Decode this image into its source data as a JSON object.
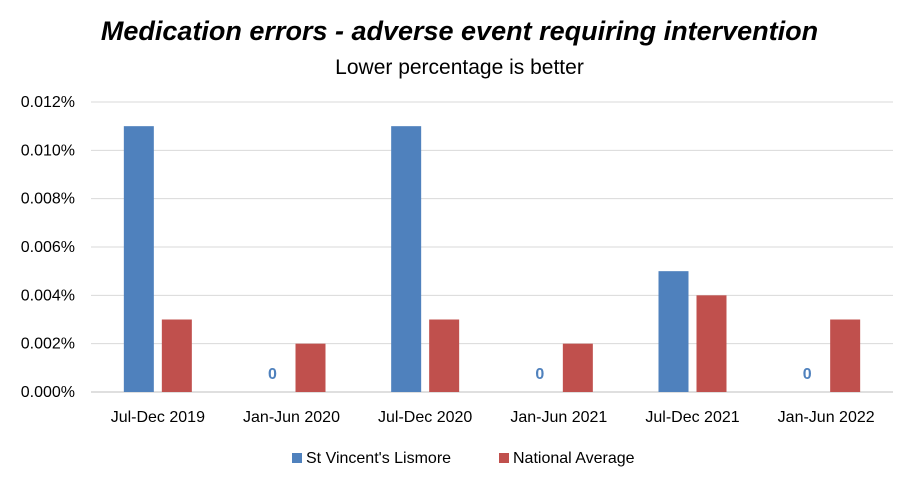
{
  "chart_data": {
    "type": "bar",
    "title": "Medication errors - adverse event requiring intervention",
    "subtitle": "Lower percentage is better",
    "categories": [
      "Jul-Dec 2019",
      "Jan-Jun 2020",
      "Jul-Dec 2020",
      "Jan-Jun 2021",
      "Jul-Dec 2021",
      "Jan-Jun 2022"
    ],
    "series": [
      {
        "name": "St Vincent's Lismore",
        "color": "#4f81bd",
        "values": [
          0.011,
          0,
          0.011,
          0,
          0.005,
          0
        ]
      },
      {
        "name": "National Average",
        "color": "#c0504d",
        "values": [
          0.003,
          0.002,
          0.003,
          0.002,
          0.004,
          0.003
        ]
      }
    ],
    "zero_label": "0",
    "y_ticks": [
      "0.000%",
      "0.002%",
      "0.004%",
      "0.006%",
      "0.008%",
      "0.010%",
      "0.012%"
    ],
    "ylim": [
      0,
      0.012
    ],
    "grid": true,
    "legend_position": "bottom"
  }
}
